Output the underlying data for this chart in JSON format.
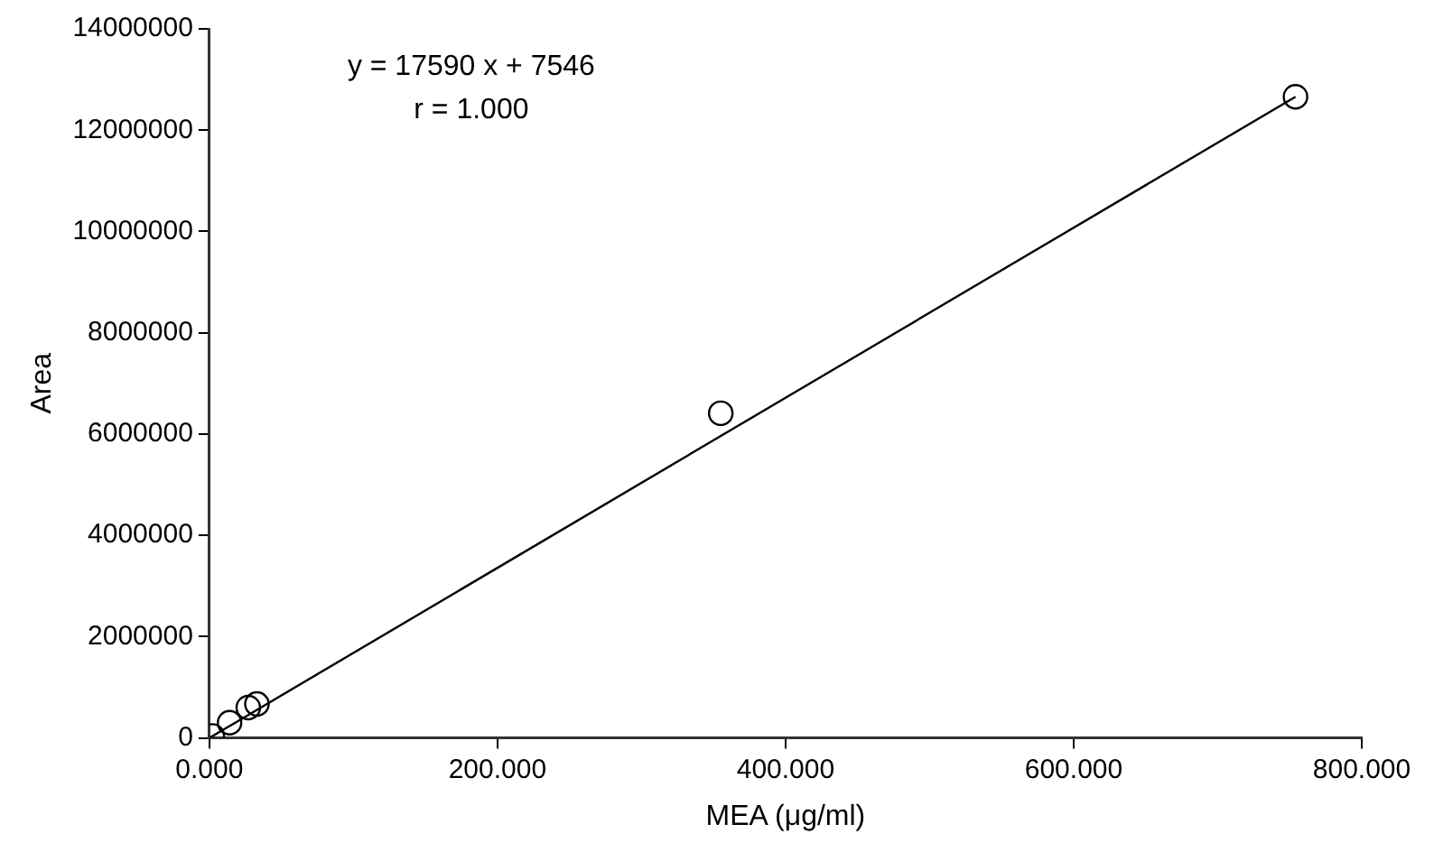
{
  "chart_data": {
    "type": "scatter",
    "xlabel": "MEA (μg/ml)",
    "ylabel": "Area",
    "annotations": [
      "y = 17590 x + 7546",
      "r = 1.000"
    ],
    "series": [
      {
        "type": "scatter",
        "color": "#000000",
        "marker": "circle",
        "x": [
          2,
          14,
          27,
          33,
          355,
          754
        ],
        "values": [
          40000,
          300000,
          600000,
          670000,
          6410000,
          12660000
        ]
      },
      {
        "type": "line",
        "color": "#000000",
        "x": [
          0,
          754
        ],
        "values": [
          0,
          12660000
        ]
      }
    ],
    "xlim": [
      0,
      800
    ],
    "xticks": [
      {
        "value": 0,
        "label": "0.000"
      },
      {
        "value": 200,
        "label": "200.000"
      },
      {
        "value": 400,
        "label": "400.000"
      },
      {
        "value": 600,
        "label": "600.000"
      },
      {
        "value": 800,
        "label": "800.000"
      }
    ],
    "ylim": [
      0,
      14000000
    ],
    "yticks": [
      0,
      2000000,
      4000000,
      6000000,
      8000000,
      10000000,
      12000000,
      14000000
    ],
    "grid": false,
    "legend": false,
    "line_style": "solid"
  }
}
